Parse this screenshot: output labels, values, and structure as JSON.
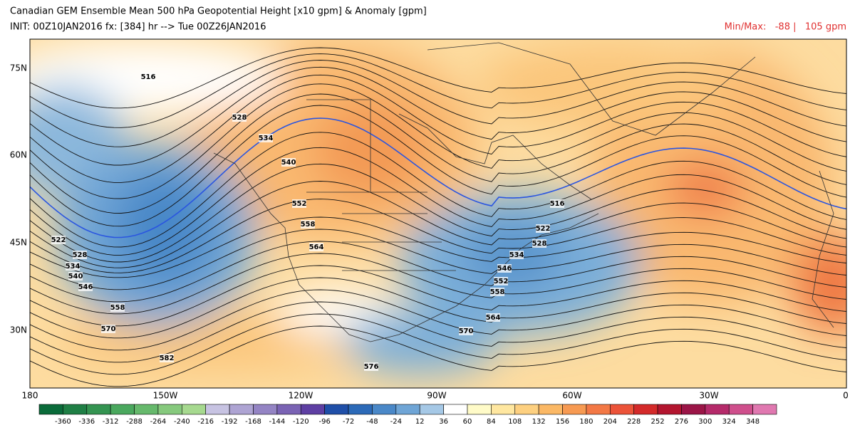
{
  "header": {
    "title": "Canadian GEM Ensemble Mean 500 hPa Geopotential Height [x10 gpm] & Anomaly [gpm]",
    "init": "INIT: 00Z10JAN2016 fx: [384] hr --> Tue 00Z26JAN2016",
    "minmax": "Min/Max:   -88 |   105 gpm"
  },
  "map": {
    "lat_labels": [
      "75N",
      "60N",
      "45N",
      "30N"
    ],
    "lon_labels": [
      "180",
      "150W",
      "120W",
      "90W",
      "60W",
      "30W",
      "0"
    ],
    "contour_labels": [
      "516",
      "528",
      "534",
      "540",
      "552",
      "558",
      "564",
      "522",
      "528",
      "534",
      "540",
      "546",
      "558",
      "570",
      "582",
      "576",
      "570",
      "564",
      "558",
      "552",
      "546",
      "534",
      "528",
      "522",
      "516"
    ]
  },
  "colorbar": {
    "labels": [
      "-360",
      "-336",
      "-312",
      "-288",
      "-264",
      "-240",
      "-216",
      "-192",
      "-168",
      "-144",
      "-120",
      "-96",
      "-72",
      "-48",
      "-24",
      "12",
      "36",
      "60",
      "84",
      "108",
      "132",
      "156",
      "180",
      "204",
      "228",
      "252",
      "276",
      "300",
      "324",
      "348"
    ],
    "colors": [
      "#0a6b3a",
      "#1f7f45",
      "#349451",
      "#4aa85e",
      "#66b96c",
      "#86c97d",
      "#a6d98f",
      "#c7c3e2",
      "#aea4d3",
      "#9484c4",
      "#7a63b4",
      "#5e3fa3",
      "#1f4fa8",
      "#2c6ab8",
      "#4a88c8",
      "#6fa5d6",
      "#a5c8e6",
      "#ffffff",
      "#fffbc8",
      "#ffe7a0",
      "#fdd080",
      "#fbb865",
      "#f79a52",
      "#f37845",
      "#ec5339",
      "#d42a2a",
      "#b3152f",
      "#9b1547",
      "#b52a6a",
      "#cf4f8c",
      "#e078b0"
    ]
  }
}
